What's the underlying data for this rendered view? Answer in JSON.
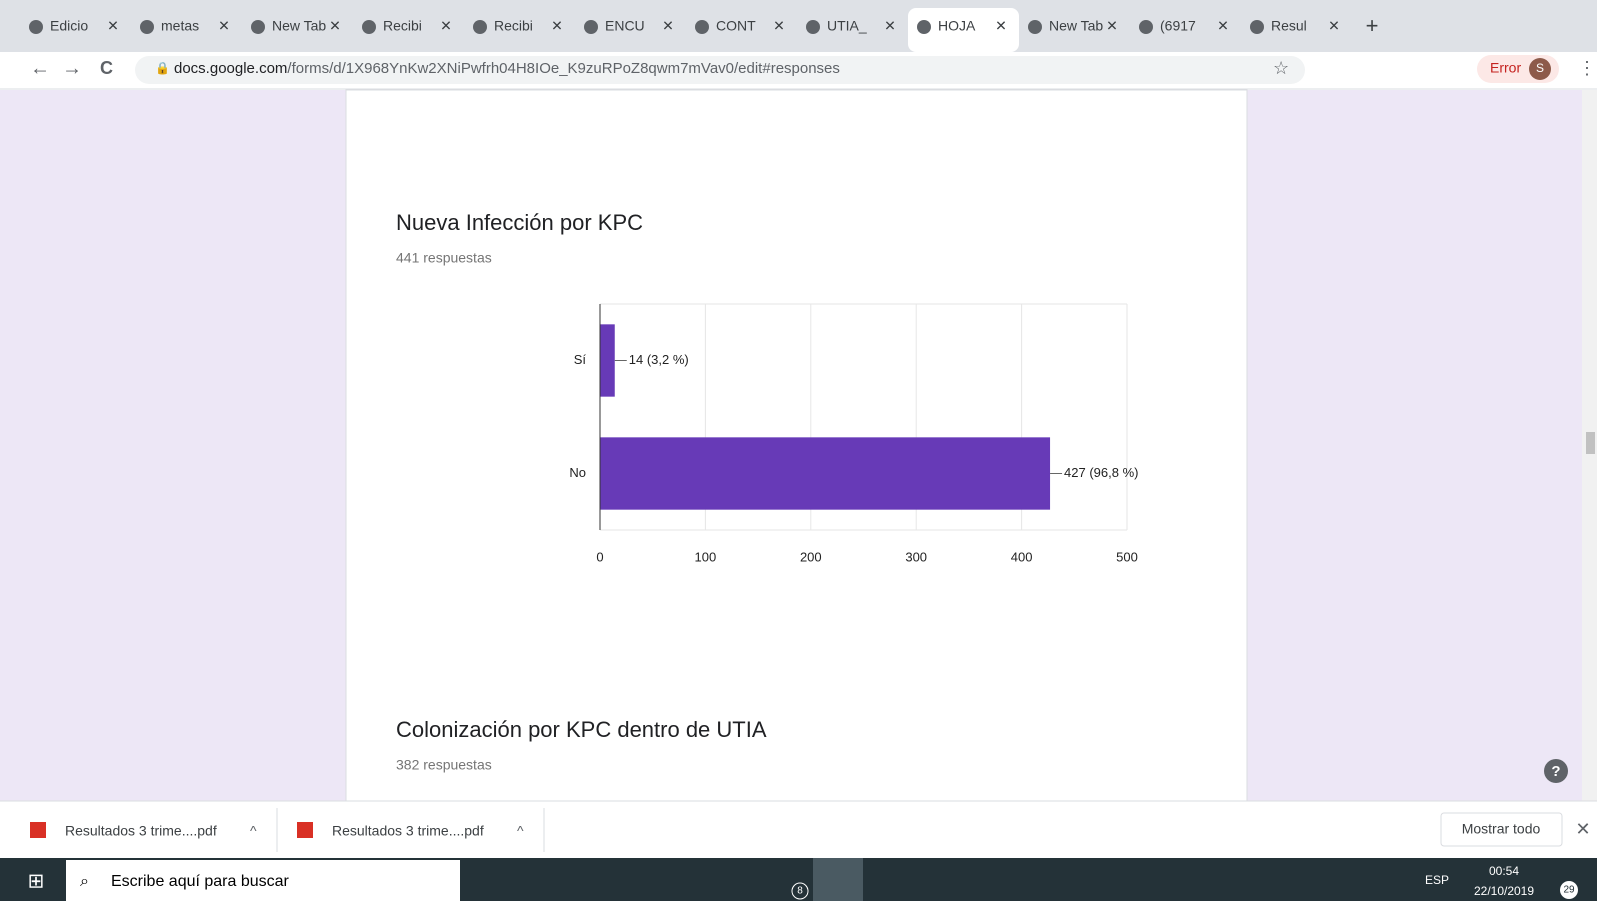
{
  "browser": {
    "tabs": [
      "Edicio",
      "metas",
      "New Tab",
      "Recibi",
      "Recibi",
      "ENCU",
      "CONT",
      "UTIA_",
      "HOJA",
      "New Tab",
      "(6917",
      "Resul"
    ],
    "active_tab": 8,
    "url_host": "docs.google.com",
    "url_path": "/forms/d/1X968YnKw2XNiPwfrh04H8IOe_K9zuRPoZ8qwm7mVav0/edit#responses",
    "profile_status": "Error",
    "profile_initial": "S"
  },
  "chart_data": {
    "type": "bar",
    "orientation": "horizontal",
    "title": "Nueva Infección por KPC",
    "subtitle": "441 respuestas",
    "categories": [
      "Sí",
      "No"
    ],
    "values": [
      14,
      427
    ],
    "value_labels": [
      "14 (3,2 %)",
      "427 (96,8 %)"
    ],
    "color": "#673ab7",
    "xlim": [
      0,
      500
    ],
    "xticks": [
      0,
      100,
      200,
      300,
      400,
      500
    ],
    "grid": true
  },
  "next_question": {
    "title": "Colonización por KPC dentro de UTIA",
    "subtitle": "382 respuestas"
  },
  "downloads": {
    "files": [
      "Resultados 3 trime....pdf",
      "Resultados 3 trime....pdf"
    ],
    "show_all": "Mostrar todo"
  },
  "taskbar": {
    "search": "Escribe aquí para buscar",
    "mail_badge": "8",
    "language": "ESP",
    "time": "00:54",
    "date": "22/10/2019",
    "notifications": "29"
  }
}
